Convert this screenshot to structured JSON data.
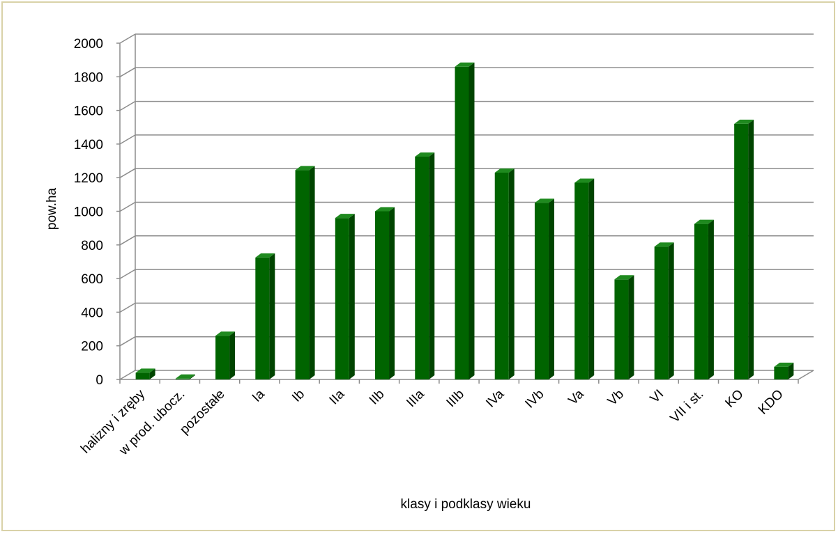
{
  "chart_data": {
    "type": "bar",
    "title": "",
    "xlabel": "klasy i podklasy wieku",
    "ylabel": "pow.ha",
    "categories": [
      "halizny i zręby",
      "w prod. ubocz.",
      "pozostałe",
      "Ia",
      "Ib",
      "IIa",
      "IIb",
      "IIIa",
      "IIIb",
      "IVa",
      "IVb",
      "Va",
      "Vb",
      "VI",
      "VII i st.",
      "KO",
      "KDO"
    ],
    "values": [
      40,
      5,
      260,
      725,
      1245,
      960,
      1000,
      1325,
      1860,
      1230,
      1050,
      1170,
      595,
      790,
      925,
      1520,
      75
    ],
    "ylim": [
      0,
      2000
    ],
    "yticks": [
      "0",
      "200",
      "400",
      "600",
      "800",
      "1000",
      "1200",
      "1400",
      "1600",
      "1800",
      "2000"
    ],
    "grid": true,
    "legend": "none",
    "colors": {
      "bar_front": "#006400",
      "bar_side": "#004400",
      "bar_top": "#1f8a1f",
      "grid": "#8c8c8c",
      "border": "#d9d2a8"
    }
  }
}
